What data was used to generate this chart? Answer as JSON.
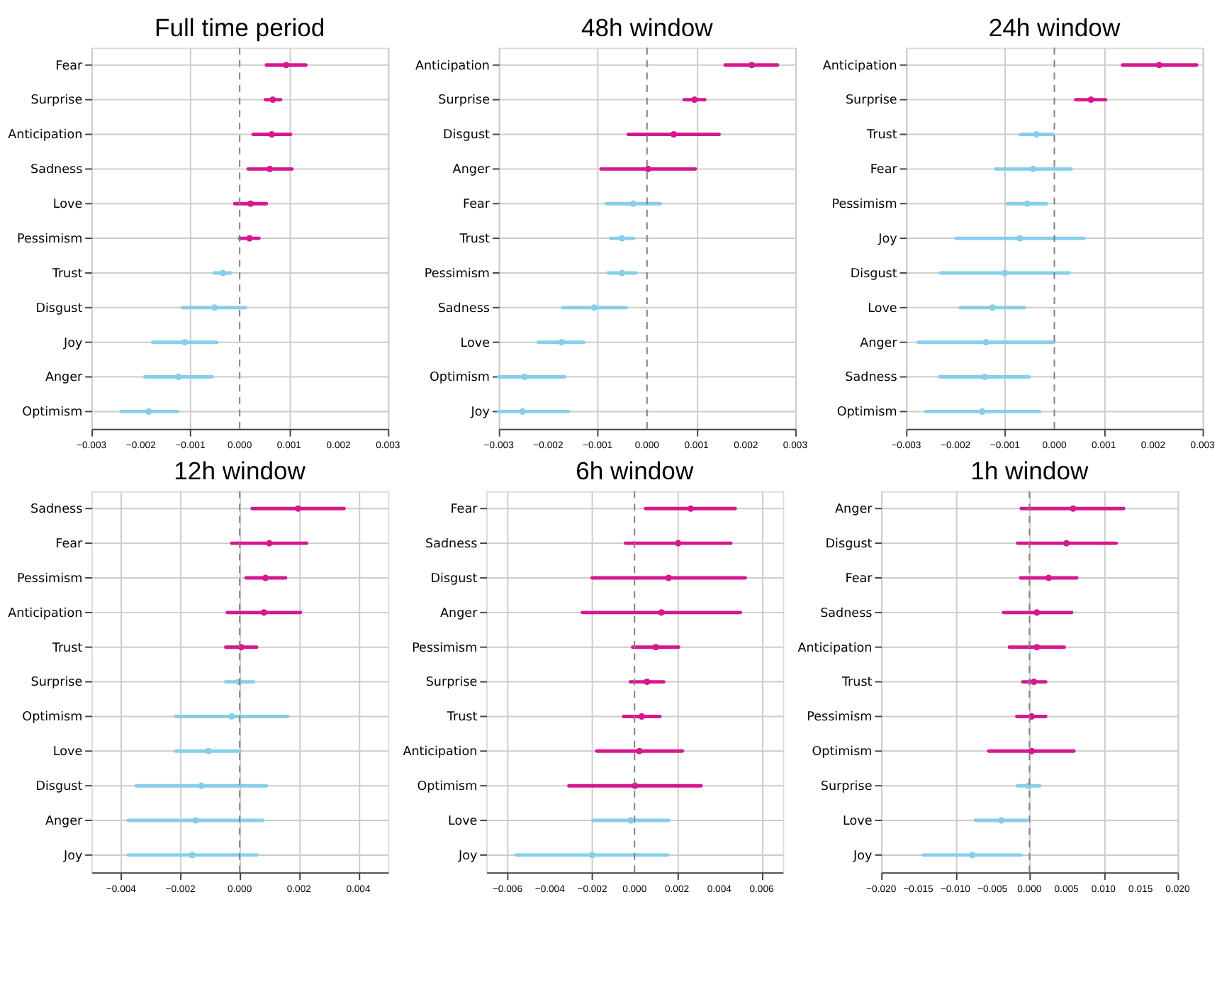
{
  "chart_data": [
    {
      "type": "scatter",
      "title": "Full time period",
      "orientation": "horizontal",
      "grid": true,
      "marker": "circle",
      "categories": [
        "Fear",
        "Surprise",
        "Anticipation",
        "Sadness",
        "Love",
        "Pessimism",
        "Trust",
        "Disgust",
        "Joy",
        "Anger",
        "Optimism"
      ],
      "values": [
        0.00094,
        0.00067,
        0.00065,
        0.00061,
        0.00022,
        0.0002,
        -0.00034,
        -0.00051,
        -0.00111,
        -0.00124,
        -0.00184
      ],
      "errors": [
        [
          0.00054,
          0.00134
        ],
        [
          0.00052,
          0.00083
        ],
        [
          0.00027,
          0.00103
        ],
        [
          0.00017,
          0.00106
        ],
        [
          -0.0001,
          0.00054
        ],
        [
          0.0,
          0.00039
        ],
        [
          -0.00052,
          -0.00018
        ],
        [
          -0.00116,
          0.00012
        ],
        [
          -0.00176,
          -0.00046
        ],
        [
          -0.00192,
          -0.00056
        ],
        [
          -0.0024,
          -0.00126
        ]
      ],
      "colors": [
        "#d6188f",
        "#d6188f",
        "#d6188f",
        "#d6188f",
        "#d6188f",
        "#d6188f",
        "#87ceeb",
        "#87ceeb",
        "#87ceeb",
        "#87ceeb",
        "#87ceeb"
      ],
      "xlim": [
        -0.003,
        0.003
      ],
      "xticks": [
        {
          "value": -0.003,
          "label": "−0.003"
        },
        {
          "value": -0.002,
          "label": "−0.002"
        },
        {
          "value": -0.001,
          "label": "−0.001"
        },
        {
          "value": 0,
          "label": "0.000"
        },
        {
          "value": 0.001,
          "label": "0.001"
        },
        {
          "value": 0.002,
          "label": "0.002"
        },
        {
          "value": 0.003,
          "label": "0.003"
        }
      ],
      "ref_lines": [
        {
          "axis": "x",
          "value": 0,
          "color": "#808080",
          "line_style": "dashed"
        }
      ]
    },
    {
      "type": "scatter",
      "title": "48h window",
      "orientation": "horizontal",
      "grid": true,
      "marker": "circle",
      "categories": [
        "Anticipation",
        "Surprise",
        "Disgust",
        "Anger",
        "Fear",
        "Trust",
        "Pessimism",
        "Sadness",
        "Love",
        "Optimism",
        "Joy"
      ],
      "values": [
        0.00212,
        0.00096,
        0.00054,
        2e-05,
        -0.00028,
        -0.00051,
        -0.00051,
        -0.00107,
        -0.00173,
        -0.00248,
        -0.00252
      ],
      "errors": [
        [
          0.00158,
          0.00264
        ],
        [
          0.00075,
          0.00117
        ],
        [
          -0.00038,
          0.00146
        ],
        [
          -0.00093,
          0.00098
        ],
        [
          -0.00082,
          0.00027
        ],
        [
          -0.00074,
          -0.00027
        ],
        [
          -0.00079,
          -0.00022
        ],
        [
          -0.00171,
          -0.00042
        ],
        [
          -0.0022,
          -0.00128
        ],
        [
          -0.003,
          -0.00166
        ],
        [
          -0.003,
          -0.00159
        ]
      ],
      "colors": [
        "#d6188f",
        "#d6188f",
        "#d6188f",
        "#d6188f",
        "#87ceeb",
        "#87ceeb",
        "#87ceeb",
        "#87ceeb",
        "#87ceeb",
        "#87ceeb",
        "#87ceeb"
      ],
      "xlim": [
        -0.003,
        0.003
      ],
      "xticks": [
        {
          "value": -0.003,
          "label": "−0.003"
        },
        {
          "value": -0.002,
          "label": "−0.002"
        },
        {
          "value": -0.001,
          "label": "−0.001"
        },
        {
          "value": 0,
          "label": "0.000"
        },
        {
          "value": 0.001,
          "label": "0.001"
        },
        {
          "value": 0.002,
          "label": "0.002"
        },
        {
          "value": 0.003,
          "label": "0.003"
        }
      ],
      "ref_lines": [
        {
          "axis": "x",
          "value": 0,
          "color": "#808080",
          "line_style": "dashed"
        }
      ]
    },
    {
      "type": "scatter",
      "title": "24h window",
      "orientation": "horizontal",
      "grid": true,
      "marker": "circle",
      "categories": [
        "Anticipation",
        "Surprise",
        "Trust",
        "Fear",
        "Pessimism",
        "Joy",
        "Disgust",
        "Love",
        "Anger",
        "Sadness",
        "Optimism"
      ],
      "values": [
        0.00212,
        0.00074,
        -0.00036,
        -0.00043,
        -0.00055,
        -0.0007,
        -0.001,
        -0.00125,
        -0.00138,
        -0.00141,
        -0.00146
      ],
      "errors": [
        [
          0.00138,
          0.00288
        ],
        [
          0.00043,
          0.00104
        ],
        [
          -0.00069,
          -3e-05
        ],
        [
          -0.00119,
          0.00034
        ],
        [
          -0.00095,
          -0.00016
        ],
        [
          -0.00199,
          0.0006
        ],
        [
          -0.0023,
          0.0003
        ],
        [
          -0.00191,
          -0.0006
        ],
        [
          -0.00275,
          -1e-05
        ],
        [
          -0.00232,
          -0.00051
        ],
        [
          -0.0026,
          -0.0003
        ]
      ],
      "colors": [
        "#d6188f",
        "#d6188f",
        "#87ceeb",
        "#87ceeb",
        "#87ceeb",
        "#87ceeb",
        "#87ceeb",
        "#87ceeb",
        "#87ceeb",
        "#87ceeb",
        "#87ceeb"
      ],
      "xlim": [
        -0.003,
        0.003
      ],
      "xticks": [
        {
          "value": -0.003,
          "label": "−0.003"
        },
        {
          "value": -0.002,
          "label": "−0.002"
        },
        {
          "value": -0.001,
          "label": "−0.001"
        },
        {
          "value": 0,
          "label": "0.000"
        },
        {
          "value": 0.001,
          "label": "0.001"
        },
        {
          "value": 0.002,
          "label": "0.002"
        },
        {
          "value": 0.003,
          "label": "0.003"
        }
      ],
      "ref_lines": [
        {
          "axis": "x",
          "value": 0,
          "color": "#808080",
          "line_style": "dashed"
        }
      ]
    },
    {
      "type": "scatter",
      "title": "12h window",
      "orientation": "horizontal",
      "grid": true,
      "marker": "circle",
      "categories": [
        "Sadness",
        "Fear",
        "Pessimism",
        "Anticipation",
        "Trust",
        "Surprise",
        "Optimism",
        "Love",
        "Disgust",
        "Anger",
        "Joy"
      ],
      "values": [
        0.00197,
        0.001,
        0.00087,
        0.00082,
        5e-05,
        -2e-05,
        -0.00027,
        -0.00105,
        -0.00129,
        -0.00149,
        -0.0016
      ],
      "errors": [
        [
          0.00042,
          0.00352
        ],
        [
          -0.00027,
          0.00226
        ],
        [
          0.00021,
          0.00155
        ],
        [
          -0.00042,
          0.00205
        ],
        [
          -0.00047,
          0.00057
        ],
        [
          -0.00047,
          0.00047
        ],
        [
          -0.00216,
          0.00163
        ],
        [
          -0.00216,
          0.0
        ],
        [
          -0.00349,
          0.0009
        ],
        [
          -0.00376,
          0.00078
        ],
        [
          -0.00376,
          0.00058
        ]
      ],
      "colors": [
        "#d6188f",
        "#d6188f",
        "#d6188f",
        "#d6188f",
        "#d6188f",
        "#87ceeb",
        "#87ceeb",
        "#87ceeb",
        "#87ceeb",
        "#87ceeb",
        "#87ceeb"
      ],
      "xlim": [
        -0.005,
        0.005
      ],
      "xticks": [
        {
          "value": -0.004,
          "label": "−0.004"
        },
        {
          "value": -0.002,
          "label": "−0.002"
        },
        {
          "value": 0,
          "label": "0.000"
        },
        {
          "value": 0.002,
          "label": "0.002"
        },
        {
          "value": 0.004,
          "label": "0.004"
        }
      ],
      "ref_lines": [
        {
          "axis": "x",
          "value": 0,
          "color": "#808080",
          "line_style": "dashed"
        }
      ]
    },
    {
      "type": "scatter",
      "title": "6h window",
      "orientation": "horizontal",
      "grid": true,
      "marker": "circle",
      "categories": [
        "Fear",
        "Sadness",
        "Disgust",
        "Anger",
        "Pessimism",
        "Surprise",
        "Trust",
        "Anticipation",
        "Optimism",
        "Love",
        "Joy"
      ],
      "values": [
        0.00265,
        0.00206,
        0.00161,
        0.00127,
        0.001,
        0.00059,
        0.00034,
        0.00023,
        2e-05,
        -0.00018,
        -0.002
      ],
      "errors": [
        [
          0.00052,
          0.00475
        ],
        [
          -0.00043,
          0.00455
        ],
        [
          -0.00201,
          0.00523
        ],
        [
          -0.00247,
          0.005
        ],
        [
          -9e-05,
          0.00208
        ],
        [
          -0.0002,
          0.00138
        ],
        [
          -0.00052,
          0.0012
        ],
        [
          -0.00179,
          0.00226
        ],
        [
          -0.0031,
          0.00314
        ],
        [
          -0.00197,
          0.00161
        ],
        [
          -0.00559,
          0.00156
        ]
      ],
      "colors": [
        "#d6188f",
        "#d6188f",
        "#d6188f",
        "#d6188f",
        "#d6188f",
        "#d6188f",
        "#d6188f",
        "#d6188f",
        "#d6188f",
        "#87ceeb",
        "#87ceeb"
      ],
      "xlim": [
        -0.007,
        0.007
      ],
      "xticks": [
        {
          "value": -0.006,
          "label": "−0.006"
        },
        {
          "value": -0.004,
          "label": "−0.004"
        },
        {
          "value": -0.002,
          "label": "−0.002"
        },
        {
          "value": 0,
          "label": "0.000"
        },
        {
          "value": 0.002,
          "label": "0.002"
        },
        {
          "value": 0.004,
          "label": "0.004"
        },
        {
          "value": 0.006,
          "label": "0.006"
        }
      ],
      "ref_lines": [
        {
          "axis": "x",
          "value": 0,
          "color": "#808080",
          "line_style": "dashed"
        }
      ]
    },
    {
      "type": "scatter",
      "title": "1h window",
      "orientation": "horizontal",
      "grid": true,
      "marker": "circle",
      "categories": [
        "Anger",
        "Disgust",
        "Fear",
        "Sadness",
        "Anticipation",
        "Trust",
        "Pessimism",
        "Optimism",
        "Surprise",
        "Love",
        "Joy"
      ],
      "values": [
        0.0059,
        0.005,
        0.0026,
        0.001,
        0.001,
        0.0006,
        0.0003,
        0.0003,
        -0.0001,
        -0.0038,
        -0.0077
      ],
      "errors": [
        [
          -0.0011,
          0.0127
        ],
        [
          -0.0016,
          0.0117
        ],
        [
          -0.0012,
          0.0064
        ],
        [
          -0.0035,
          0.0057
        ],
        [
          -0.0027,
          0.0047
        ],
        [
          -0.0009,
          0.0022
        ],
        [
          -0.0017,
          0.0022
        ],
        [
          -0.0055,
          0.006
        ],
        [
          -0.0016,
          0.0014
        ],
        [
          -0.0073,
          -0.0004
        ],
        [
          -0.0143,
          -0.0011
        ]
      ],
      "colors": [
        "#d6188f",
        "#d6188f",
        "#d6188f",
        "#d6188f",
        "#d6188f",
        "#d6188f",
        "#d6188f",
        "#d6188f",
        "#87ceeb",
        "#87ceeb",
        "#87ceeb"
      ],
      "xlim": [
        -0.02,
        0.02
      ],
      "xticks": [
        {
          "value": -0.02,
          "label": "−0.020"
        },
        {
          "value": -0.015,
          "label": "−0.015"
        },
        {
          "value": -0.01,
          "label": "−0.010"
        },
        {
          "value": -0.005,
          "label": "−0.005"
        },
        {
          "value": 0,
          "label": "0.000"
        },
        {
          "value": 0.005,
          "label": "0.005"
        },
        {
          "value": 0.01,
          "label": "0.010"
        },
        {
          "value": 0.015,
          "label": "0.015"
        },
        {
          "value": 0.02,
          "label": "0.020"
        }
      ],
      "ref_lines": [
        {
          "axis": "x",
          "value": 0,
          "color": "#808080",
          "line_style": "dashed"
        }
      ]
    }
  ]
}
